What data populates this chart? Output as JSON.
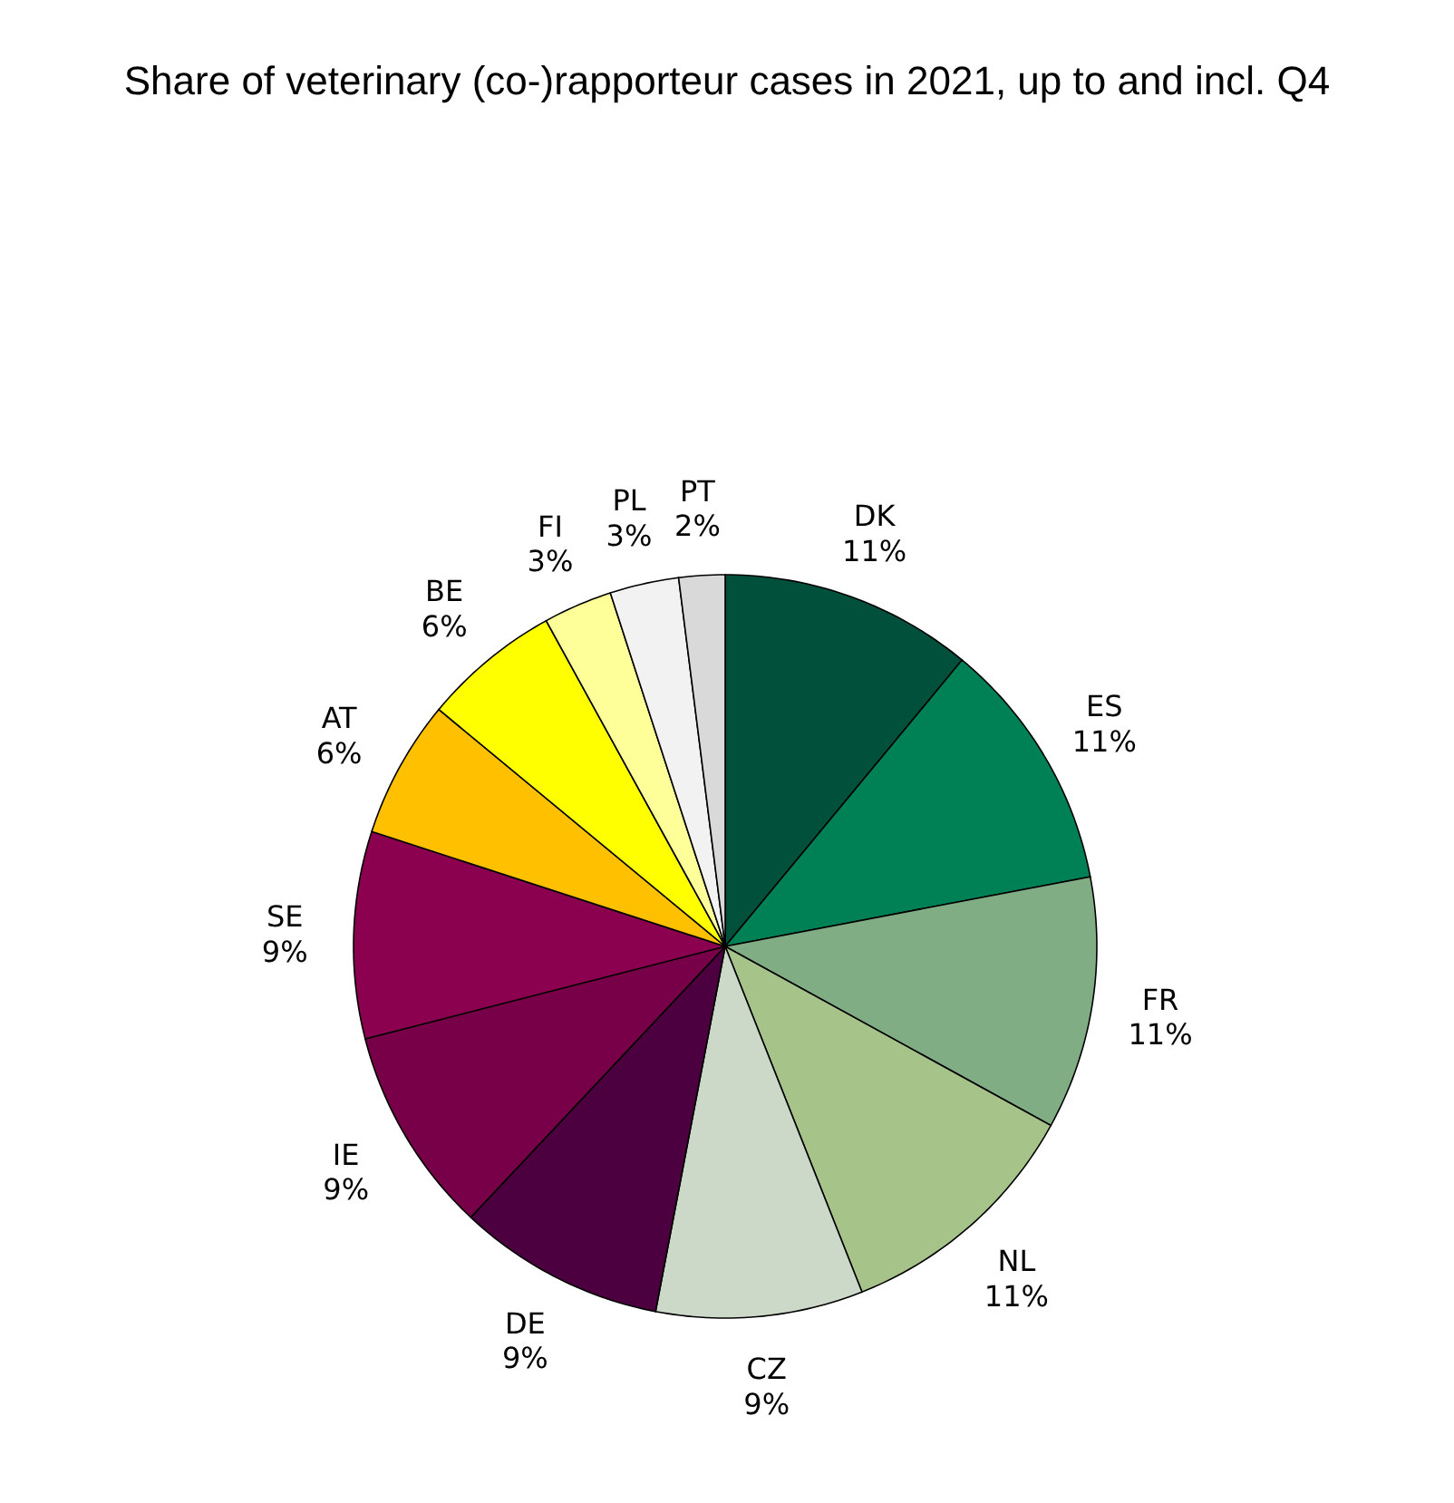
{
  "chart_data": {
    "type": "pie",
    "title": "Share of veterinary (co-)rapporteur cases in 2021, up to and incl. Q4",
    "categories": [
      "DK",
      "ES",
      "FR",
      "NL",
      "CZ",
      "DE",
      "IE",
      "SE",
      "AT",
      "BE",
      "FI",
      "PL",
      "PT"
    ],
    "values": [
      11,
      11,
      11,
      11,
      9,
      9,
      9,
      9,
      6,
      6,
      3,
      3,
      2
    ],
    "colors": [
      "#00503c",
      "#008055",
      "#80ad84",
      "#a6c48a",
      "#ccd8c8",
      "#4d0040",
      "#780048",
      "#8c0050",
      "#ffc000",
      "#ffff00",
      "#ffff99",
      "#f2f2f2",
      "#d9d9d9"
    ],
    "value_labels": [
      "11%",
      "11%",
      "11%",
      "11%",
      "9%",
      "9%",
      "9%",
      "9%",
      "6%",
      "6%",
      "3%",
      "3%",
      "2%"
    ]
  }
}
